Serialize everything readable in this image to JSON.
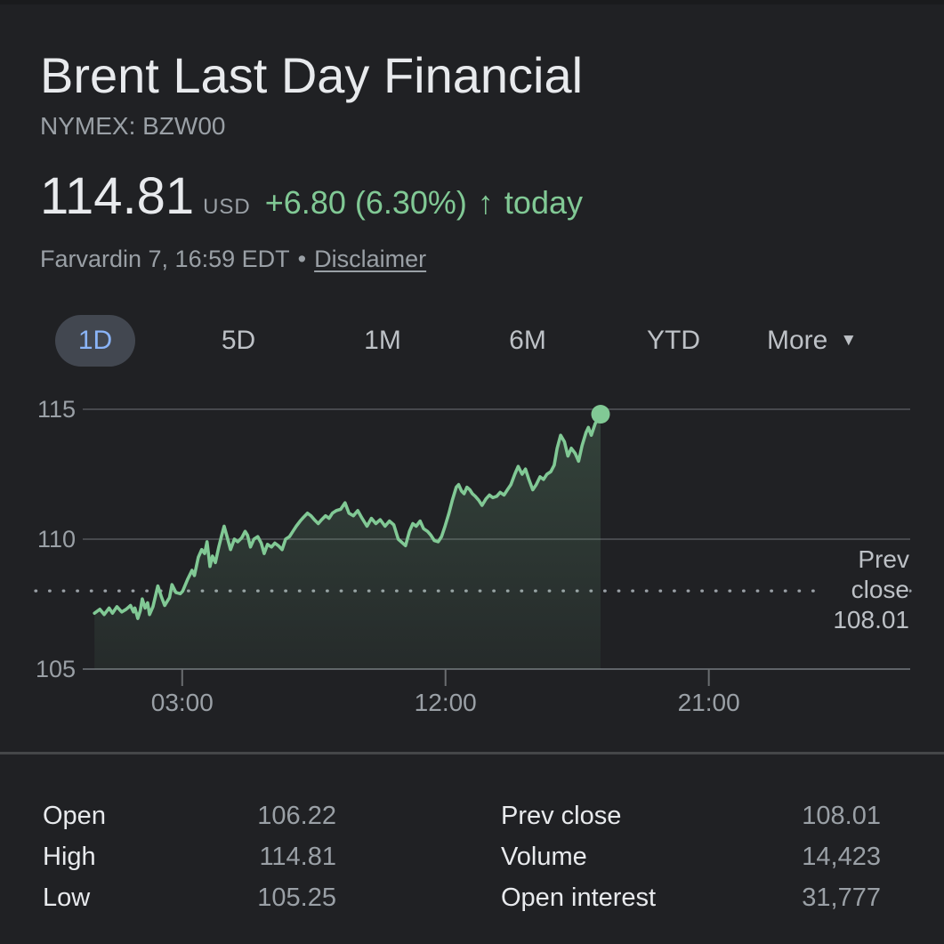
{
  "colors": {
    "background": "#202124",
    "accent_green": "#81c995",
    "tab_selected_blue": "#8ab4f8",
    "text_primary": "#e8eaed",
    "text_secondary": "#9aa0a6"
  },
  "header": {
    "title": "Brent Last Day Financial",
    "exchange_symbol": "NYMEX: BZW00"
  },
  "quote": {
    "price": "114.81",
    "currency": "USD",
    "change": "+6.80 (6.30%)",
    "arrow_icon": "↑",
    "change_period": "today",
    "timestamp": "Farvardin 7, 16:59 EDT",
    "separator": "•",
    "disclaimer": "Disclaimer"
  },
  "range_tabs": {
    "selected": "1D",
    "tab_1d": "1D",
    "tab_5d": "5D",
    "tab_1m": "1M",
    "tab_6m": "6M",
    "tab_ytd": "YTD",
    "more_label": "More",
    "more_arrow_icon": "▼"
  },
  "chart_data": {
    "type": "area",
    "series_name": "Brent Last Day Financial intraday price (USD)",
    "x_unit": "minutes since 00:00",
    "xlim": [
      -24,
      1673
    ],
    "ylim": [
      105,
      115
    ],
    "grid": true,
    "line_color": "#81c995",
    "last_point_marker": true,
    "y_ticks": [
      {
        "value": 115,
        "label": "115"
      },
      {
        "value": 110,
        "label": "110"
      },
      {
        "value": 105,
        "label": "105"
      }
    ],
    "x_ticks": [
      {
        "value": 180,
        "label": "03:00"
      },
      {
        "value": 720,
        "label": "12:00"
      },
      {
        "value": 1260,
        "label": "21:00"
      }
    ],
    "prev_close": {
      "value": 108.01,
      "label_lines": [
        "Prev",
        "close",
        "108.01"
      ]
    },
    "points": [
      [
        0,
        107.15
      ],
      [
        11,
        107.3
      ],
      [
        20,
        107.1
      ],
      [
        30,
        107.35
      ],
      [
        37,
        107.15
      ],
      [
        46,
        107.4
      ],
      [
        56,
        107.2
      ],
      [
        65,
        107.3
      ],
      [
        74,
        107.45
      ],
      [
        80,
        107.2
      ],
      [
        83,
        107.35
      ],
      [
        89,
        106.95
      ],
      [
        94,
        107.25
      ],
      [
        98,
        107.7
      ],
      [
        104,
        107.35
      ],
      [
        109,
        107.55
      ],
      [
        113,
        107.1
      ],
      [
        120,
        107.4
      ],
      [
        130,
        108.2
      ],
      [
        137,
        107.8
      ],
      [
        144,
        107.45
      ],
      [
        154,
        107.75
      ],
      [
        159,
        108.25
      ],
      [
        167,
        107.95
      ],
      [
        176,
        107.9
      ],
      [
        181,
        108.0
      ],
      [
        191,
        108.45
      ],
      [
        200,
        108.8
      ],
      [
        205,
        108.6
      ],
      [
        213,
        109.3
      ],
      [
        220,
        109.6
      ],
      [
        226,
        109.45
      ],
      [
        231,
        109.9
      ],
      [
        237,
        108.95
      ],
      [
        242,
        109.35
      ],
      [
        248,
        109.1
      ],
      [
        255,
        109.7
      ],
      [
        261,
        110.15
      ],
      [
        266,
        110.5
      ],
      [
        272,
        110.1
      ],
      [
        279,
        109.6
      ],
      [
        287,
        110.0
      ],
      [
        294,
        109.9
      ],
      [
        302,
        110.05
      ],
      [
        309,
        110.3
      ],
      [
        314,
        110.15
      ],
      [
        320,
        109.7
      ],
      [
        327,
        110.0
      ],
      [
        335,
        110.1
      ],
      [
        342,
        109.85
      ],
      [
        348,
        109.45
      ],
      [
        355,
        109.8
      ],
      [
        363,
        109.7
      ],
      [
        370,
        109.85
      ],
      [
        377,
        109.75
      ],
      [
        385,
        109.6
      ],
      [
        392,
        110.0
      ],
      [
        400,
        110.1
      ],
      [
        407,
        110.3
      ],
      [
        414,
        110.5
      ],
      [
        422,
        110.7
      ],
      [
        429,
        110.85
      ],
      [
        437,
        111.0
      ],
      [
        444,
        110.9
      ],
      [
        451,
        110.75
      ],
      [
        459,
        110.6
      ],
      [
        466,
        110.75
      ],
      [
        474,
        110.9
      ],
      [
        481,
        110.8
      ],
      [
        488,
        111.0
      ],
      [
        496,
        111.1
      ],
      [
        505,
        111.15
      ],
      [
        514,
        111.4
      ],
      [
        522,
        111.0
      ],
      [
        531,
        110.9
      ],
      [
        540,
        111.1
      ],
      [
        549,
        110.8
      ],
      [
        559,
        110.5
      ],
      [
        568,
        110.8
      ],
      [
        577,
        110.6
      ],
      [
        586,
        110.75
      ],
      [
        596,
        110.5
      ],
      [
        605,
        110.7
      ],
      [
        614,
        110.55
      ],
      [
        623,
        110.0
      ],
      [
        629,
        109.9
      ],
      [
        638,
        109.75
      ],
      [
        646,
        110.3
      ],
      [
        653,
        110.6
      ],
      [
        660,
        110.5
      ],
      [
        668,
        110.7
      ],
      [
        675,
        110.4
      ],
      [
        683,
        110.3
      ],
      [
        690,
        110.15
      ],
      [
        697,
        109.95
      ],
      [
        705,
        109.9
      ],
      [
        712,
        110.1
      ],
      [
        719,
        110.5
      ],
      [
        727,
        111.0
      ],
      [
        734,
        111.5
      ],
      [
        742,
        112.0
      ],
      [
        747,
        112.1
      ],
      [
        753,
        111.85
      ],
      [
        758,
        111.75
      ],
      [
        764,
        112.0
      ],
      [
        770,
        111.9
      ],
      [
        775,
        111.75
      ],
      [
        781,
        111.65
      ],
      [
        788,
        111.5
      ],
      [
        795,
        111.3
      ],
      [
        803,
        111.55
      ],
      [
        810,
        111.7
      ],
      [
        817,
        111.6
      ],
      [
        825,
        111.65
      ],
      [
        832,
        111.8
      ],
      [
        840,
        111.7
      ],
      [
        847,
        111.9
      ],
      [
        854,
        112.1
      ],
      [
        862,
        112.5
      ],
      [
        869,
        112.8
      ],
      [
        877,
        112.5
      ],
      [
        884,
        112.7
      ],
      [
        891,
        112.3
      ],
      [
        899,
        111.9
      ],
      [
        906,
        112.1
      ],
      [
        914,
        112.4
      ],
      [
        921,
        112.3
      ],
      [
        928,
        112.5
      ],
      [
        936,
        112.6
      ],
      [
        943,
        112.85
      ],
      [
        949,
        113.5
      ],
      [
        956,
        114.0
      ],
      [
        964,
        113.75
      ],
      [
        971,
        113.2
      ],
      [
        978,
        113.5
      ],
      [
        986,
        113.3
      ],
      [
        993,
        113.0
      ],
      [
        1000,
        113.6
      ],
      [
        1008,
        114.1
      ],
      [
        1013,
        114.3
      ],
      [
        1019,
        114.0
      ],
      [
        1027,
        114.45
      ],
      [
        1032,
        114.6
      ],
      [
        1038,
        114.81
      ]
    ]
  },
  "stats": {
    "left": [
      {
        "label": "Open",
        "value": "106.22"
      },
      {
        "label": "High",
        "value": "114.81"
      },
      {
        "label": "Low",
        "value": "105.25"
      }
    ],
    "right": [
      {
        "label": "Prev close",
        "value": "108.01"
      },
      {
        "label": "Volume",
        "value": "14,423"
      },
      {
        "label": "Open interest",
        "value": "31,777"
      }
    ]
  }
}
